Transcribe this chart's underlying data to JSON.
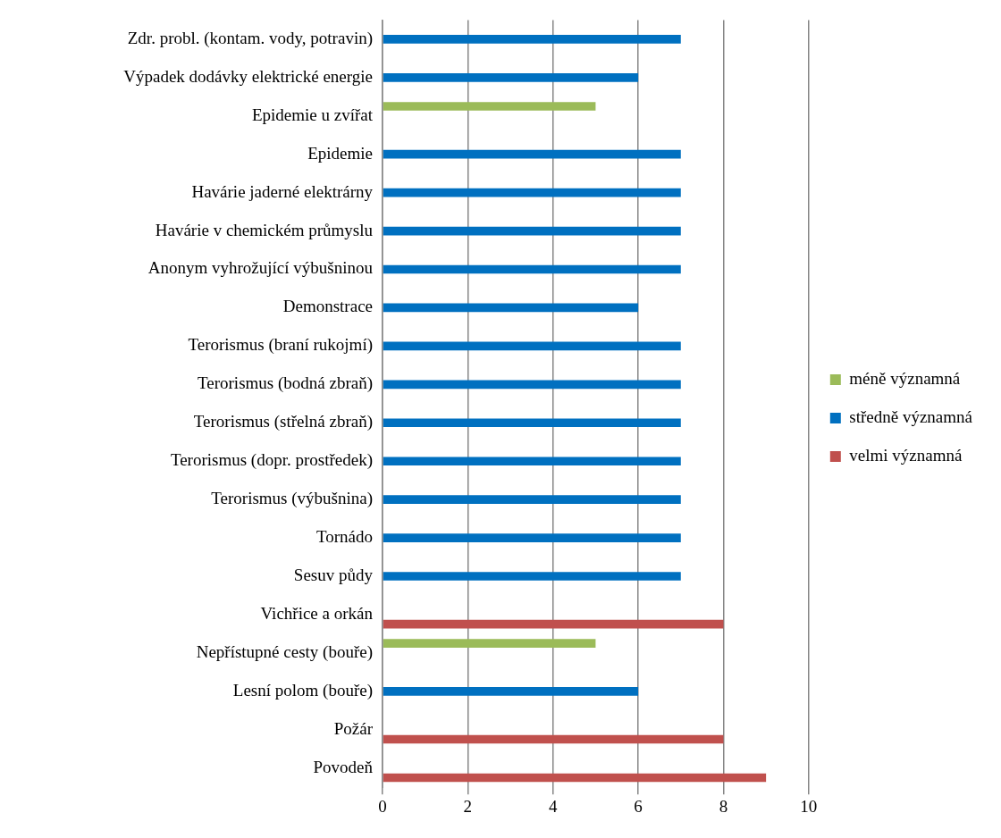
{
  "chart_data": {
    "type": "bar",
    "orientation": "horizontal",
    "categories": [
      "Zdr. probl. (kontam. vody, potravin)",
      "Výpadek dodávky elektrické energie",
      "Epidemie u zvířat",
      "Epidemie",
      "Havárie jaderné elektrárny",
      "Havárie v chemickém průmyslu",
      "Anonym vyhrožující výbušninou",
      "Demonstrace",
      "Terorismus (braní rukojmí)",
      "Terorismus (bodná zbraň)",
      "Terorismus (střelná zbraň)",
      "Terorismus (dopr. prostředek)",
      "Terorismus (výbušnina)",
      "Tornádo",
      "Sesuv půdy",
      "Vichřice a orkán",
      "Nepřístupné cesty (bouře)",
      "Lesní polom (bouře)",
      "Požár",
      "Povodeň"
    ],
    "series": [
      {
        "name": "méně významná",
        "color": "#9bbb59",
        "values": [
          null,
          null,
          5,
          null,
          null,
          null,
          null,
          null,
          null,
          null,
          null,
          null,
          null,
          null,
          null,
          null,
          5,
          null,
          null,
          null
        ]
      },
      {
        "name": "středně významná",
        "color": "#0070c0",
        "values": [
          7,
          6,
          null,
          7,
          7,
          7,
          7,
          6,
          7,
          7,
          7,
          7,
          7,
          7,
          7,
          null,
          null,
          6,
          null,
          null
        ]
      },
      {
        "name": "velmi významná",
        "color": "#c0504d",
        "values": [
          null,
          null,
          null,
          null,
          null,
          null,
          null,
          null,
          null,
          null,
          null,
          null,
          null,
          null,
          null,
          8,
          null,
          null,
          8,
          9
        ]
      }
    ],
    "xlim": [
      0,
      10
    ],
    "xticks": [
      0,
      2,
      4,
      6,
      8,
      10
    ],
    "grid": "x",
    "legend": "right"
  }
}
